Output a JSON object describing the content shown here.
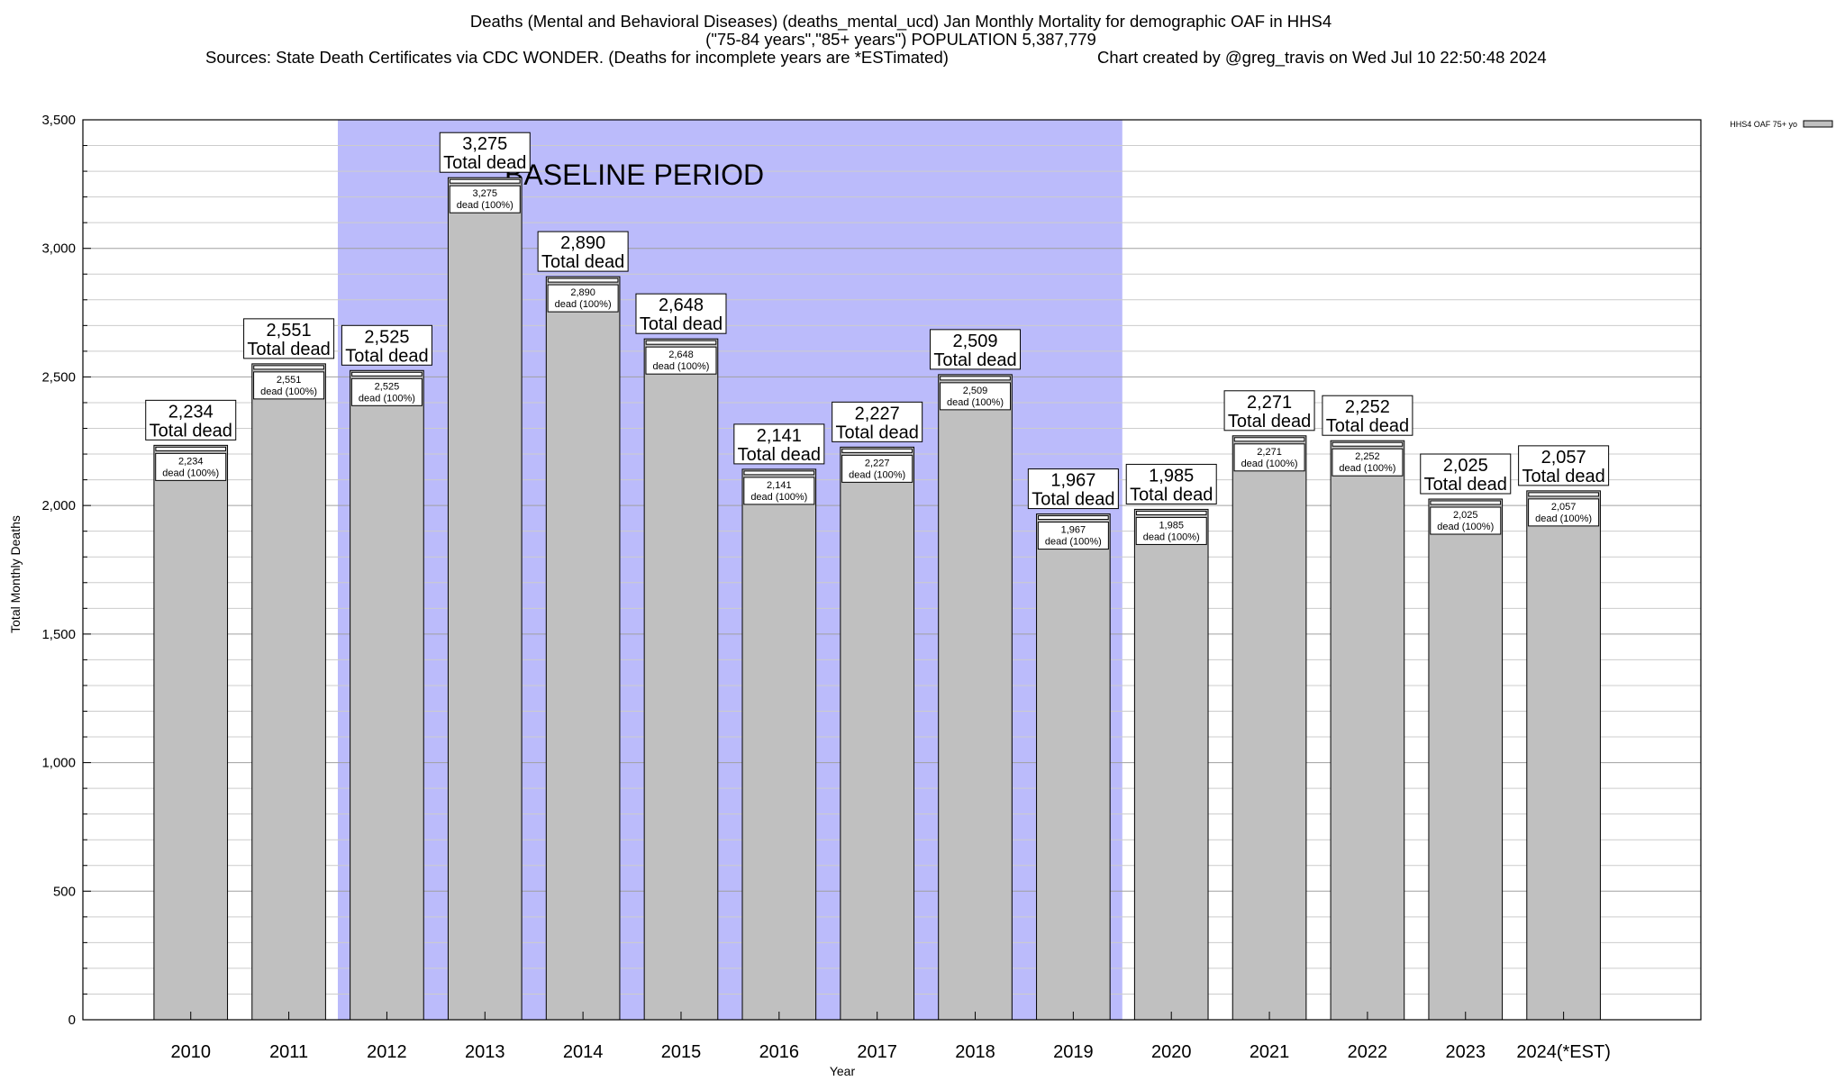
{
  "title": {
    "line1": "Deaths (Mental and Behavioral Diseases) (deaths_mental_ucd) Jan Monthly Mortality for demographic OAF in HHS4",
    "line2": "(\"75-84 years\",\"85+ years\") POPULATION 5,387,779",
    "sources": "Sources: State Death Certificates via CDC WONDER. (Deaths for incomplete years are *ESTimated)",
    "credit": "Chart created by @greg_travis on Wed Jul 10 22:50:48 2024"
  },
  "chart_data": {
    "type": "bar",
    "categories": [
      "2010",
      "2011",
      "2012",
      "2013",
      "2014",
      "2015",
      "2016",
      "2017",
      "2018",
      "2019",
      "2020",
      "2021",
      "2022",
      "2023",
      "2024(*EST)"
    ],
    "series": [
      {
        "name": "HHS4 OAF 75+ yo",
        "values": [
          2234,
          2551,
          2525,
          3275,
          2890,
          2648,
          2141,
          2227,
          2509,
          1967,
          1985,
          2271,
          2252,
          2025,
          2057
        ],
        "value_labels": [
          "2,234",
          "2,551",
          "2,525",
          "3,275",
          "2,890",
          "2,648",
          "2,141",
          "2,227",
          "2,509",
          "1,967",
          "1,985",
          "2,271",
          "2,252",
          "2,025",
          "2,057"
        ]
      }
    ],
    "inner_label_suffix": "dead (100%)",
    "outer_label_suffix": "Total dead",
    "xlabel": "Year",
    "ylabel": "Total Monthly Deaths",
    "ylim": [
      0,
      3500
    ],
    "yticks": [
      0,
      500,
      1000,
      1500,
      2000,
      2500,
      3000,
      3500
    ],
    "ytick_labels": [
      "0",
      "500",
      "1,000",
      "1,500",
      "2,000",
      "2,500",
      "3,000",
      "3,500"
    ],
    "minor_step": 100,
    "grid": true,
    "baseline_period": {
      "label": "BASELINE PERIOD",
      "from": "2012",
      "to": "2019"
    },
    "legend_position": "top-right",
    "colors": {
      "bar": "#c0c0c0",
      "baseline": "#bbbbfb",
      "grid": "#a0a0a0"
    }
  }
}
